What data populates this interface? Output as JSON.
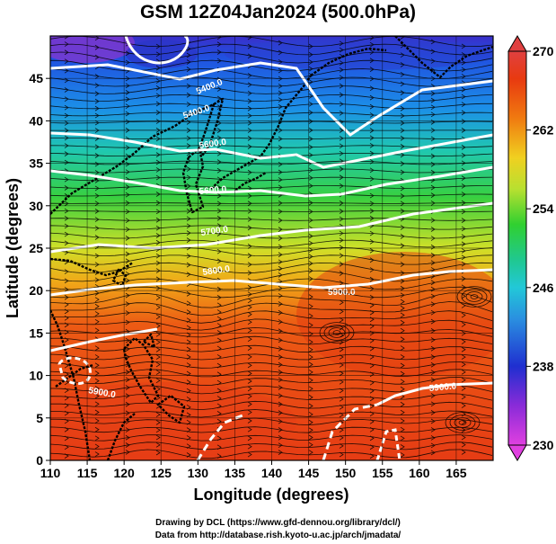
{
  "title": "GSM 12Z04Jan2024 (500.0hPa)",
  "xlabel": "Longitude (degrees)",
  "ylabel": "Latitude  (degrees)",
  "credits": [
    "Drawing by DCL (https://www.gfd-dennou.org/library/dcl/)",
    "Data from http://database.rish.kyoto-u.ac.jp/arch/jmadata/"
  ],
  "chart_data": {
    "type": "heatmap",
    "x_ticks": [
      110,
      115,
      120,
      125,
      130,
      135,
      140,
      145,
      150,
      155,
      160,
      165
    ],
    "y_ticks": [
      0,
      5,
      10,
      15,
      20,
      25,
      30,
      35,
      40,
      45
    ],
    "xlim": [
      110,
      170
    ],
    "ylim": [
      0,
      50
    ],
    "colorbar": {
      "ticks": [
        230,
        238,
        246,
        254,
        262,
        270
      ],
      "range": [
        230,
        270
      ],
      "colors": [
        "#e040e0",
        "#8a2bd8",
        "#1f2fd0",
        "#2a8fe0",
        "#22c8d8",
        "#20c890",
        "#30d030",
        "#b8e030",
        "#f0d020",
        "#f07a10",
        "#e83a10",
        "#e04040"
      ]
    },
    "contour_labels": [
      "5400.0",
      "5400.0",
      "5600.0",
      "5600.0",
      "5700.0",
      "5800.0",
      "5900.0",
      "5900.0",
      "5900.0"
    ]
  }
}
